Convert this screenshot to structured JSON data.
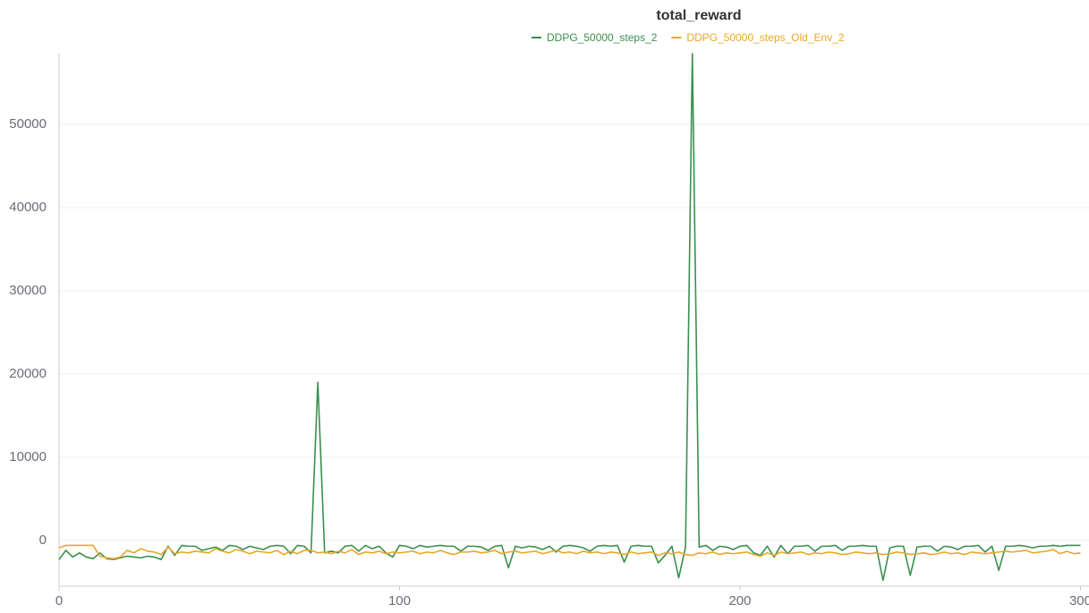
{
  "chart_data": {
    "type": "line",
    "title": "total_reward",
    "x": [
      0,
      2,
      4,
      6,
      8,
      10,
      12,
      14,
      16,
      18,
      20,
      22,
      24,
      26,
      28,
      30,
      32,
      34,
      36,
      38,
      40,
      42,
      44,
      46,
      48,
      50,
      52,
      54,
      56,
      58,
      60,
      62,
      64,
      66,
      68,
      70,
      72,
      74,
      76,
      78,
      80,
      82,
      84,
      86,
      88,
      90,
      92,
      94,
      96,
      98,
      100,
      102,
      104,
      106,
      108,
      110,
      112,
      114,
      116,
      118,
      120,
      122,
      124,
      126,
      128,
      130,
      132,
      134,
      136,
      138,
      140,
      142,
      144,
      146,
      148,
      150,
      152,
      154,
      156,
      158,
      160,
      162,
      164,
      166,
      168,
      170,
      172,
      174,
      176,
      178,
      180,
      182,
      184,
      186,
      188,
      190,
      192,
      194,
      196,
      198,
      200,
      202,
      204,
      206,
      208,
      210,
      212,
      214,
      216,
      218,
      220,
      222,
      224,
      226,
      228,
      230,
      232,
      234,
      236,
      238,
      240,
      242,
      244,
      246,
      248,
      250,
      252,
      254,
      256,
      258,
      260,
      262,
      264,
      266,
      268,
      270,
      272,
      274,
      276,
      278,
      280,
      282,
      284,
      286,
      288,
      290,
      292,
      294,
      296,
      298,
      300
    ],
    "series": [
      {
        "name": "DDPG_50000_steps_2",
        "color": "#3a8f4f",
        "values": [
          -2300,
          -1200,
          -2000,
          -1500,
          -2000,
          -2200,
          -1500,
          -2200,
          -2300,
          -2100,
          -1900,
          -2000,
          -2100,
          -1900,
          -2000,
          -2300,
          -700,
          -1800,
          -600,
          -700,
          -700,
          -1200,
          -1000,
          -800,
          -1200,
          -600,
          -700,
          -1100,
          -700,
          -900,
          -1100,
          -700,
          -600,
          -700,
          -1600,
          -600,
          -700,
          -1500,
          19000,
          -1500,
          -1300,
          -1500,
          -700,
          -600,
          -1300,
          -600,
          -1000,
          -700,
          -1500,
          -2000,
          -600,
          -700,
          -1000,
          -600,
          -800,
          -700,
          -600,
          -700,
          -700,
          -1300,
          -700,
          -700,
          -800,
          -1200,
          -700,
          -600,
          -3300,
          -700,
          -900,
          -700,
          -800,
          -1100,
          -700,
          -1400,
          -700,
          -600,
          -700,
          -900,
          -1300,
          -700,
          -600,
          -700,
          -600,
          -2600,
          -700,
          -600,
          -700,
          -700,
          -2700,
          -1800,
          -700,
          -4500,
          -800,
          58500,
          -800,
          -600,
          -1200,
          -700,
          -800,
          -1100,
          -700,
          -600,
          -1500,
          -1800,
          -700,
          -2000,
          -600,
          -1600,
          -700,
          -700,
          -600,
          -1300,
          -700,
          -700,
          -600,
          -1200,
          -700,
          -700,
          -600,
          -700,
          -700,
          -4800,
          -900,
          -700,
          -700,
          -4200,
          -800,
          -700,
          -700,
          -1300,
          -700,
          -800,
          -1100,
          -700,
          -700,
          -600,
          -1400,
          -700,
          -3600,
          -700,
          -700,
          -600,
          -700,
          -900,
          -700,
          -700,
          -600,
          -700,
          -600,
          -600,
          -600
        ]
      },
      {
        "name": "DDPG_50000_steps_Old_Env_2",
        "color": "#e8a825",
        "values": [
          -900,
          -600,
          -600,
          -600,
          -600,
          -600,
          -1900,
          -2100,
          -2200,
          -2000,
          -1200,
          -1500,
          -1000,
          -1300,
          -1400,
          -1700,
          -800,
          -1600,
          -1400,
          -1500,
          -1300,
          -1400,
          -1500,
          -1000,
          -1300,
          -1500,
          -1100,
          -1300,
          -1600,
          -1300,
          -1400,
          -1500,
          -1200,
          -1700,
          -1300,
          -1600,
          -1200,
          -1200,
          -1500,
          -1400,
          -1600,
          -1300,
          -1500,
          -1100,
          -1700,
          -1400,
          -1500,
          -1300,
          -1600,
          -1400,
          -1500,
          -1400,
          -1300,
          -1600,
          -1400,
          -1500,
          -1200,
          -1500,
          -1700,
          -1400,
          -1400,
          -1300,
          -1500,
          -1400,
          -1200,
          -1600,
          -1400,
          -1300,
          -1500,
          -1400,
          -1300,
          -1600,
          -1400,
          -1200,
          -1500,
          -1400,
          -1600,
          -1300,
          -1500,
          -1400,
          -1600,
          -1400,
          -1500,
          -1700,
          -1400,
          -1600,
          -1500,
          -1400,
          -1800,
          -1500,
          -1600,
          -1400,
          -1700,
          -1800,
          -1500,
          -1600,
          -1400,
          -1700,
          -1500,
          -1600,
          -1500,
          -1400,
          -1700,
          -1900,
          -1500,
          -1800,
          -1400,
          -1600,
          -1500,
          -1400,
          -1700,
          -1500,
          -1600,
          -1400,
          -1500,
          -1700,
          -1600,
          -1400,
          -1500,
          -1600,
          -1500,
          -1700,
          -1600,
          -1400,
          -1500,
          -1700,
          -1600,
          -1500,
          -1700,
          -1600,
          -1400,
          -1600,
          -1500,
          -1700,
          -1400,
          -1500,
          -1600,
          -1500,
          -1400,
          -1300,
          -1400,
          -1300,
          -1200,
          -1500,
          -1400,
          -1300,
          -1100,
          -1600,
          -1300,
          -1600,
          -1500
        ]
      }
    ],
    "xlim": [
      0,
      302.5
    ],
    "ylim": [
      -5500,
      58500
    ],
    "xticks": [
      0,
      100,
      200,
      300
    ],
    "yticks": [
      0,
      10000,
      20000,
      30000,
      40000,
      50000
    ],
    "grid": true
  }
}
